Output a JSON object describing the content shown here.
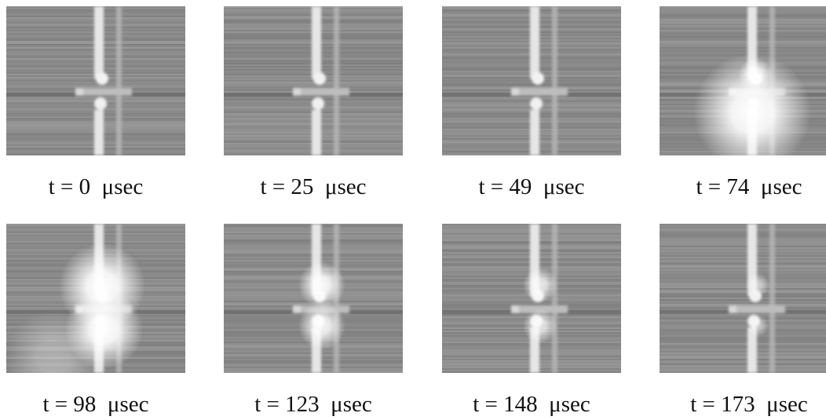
{
  "panels": [
    {
      "caption": "t = 0  μsec"
    },
    {
      "caption": "t = 25  μsec"
    },
    {
      "caption": "t = 49  μsec"
    },
    {
      "caption": "t = 74  μsec"
    },
    {
      "caption": "t = 98  μsec"
    },
    {
      "caption": "t = 123  μsec"
    },
    {
      "caption": "t = 148  μsec"
    },
    {
      "caption": "t = 173  μsec"
    }
  ]
}
